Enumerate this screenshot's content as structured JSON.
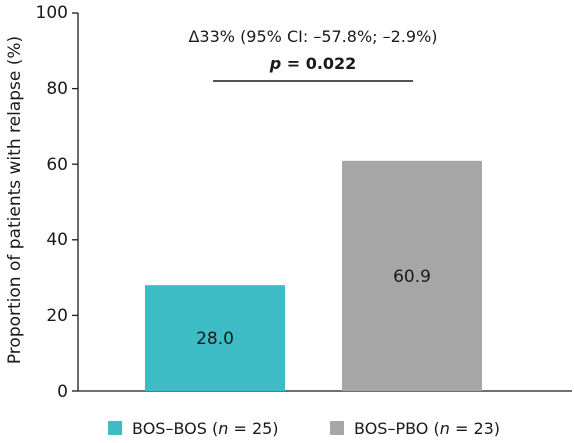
{
  "chart_data": {
    "type": "bar",
    "categories": [
      "BOS–BOS",
      "BOS–PBO"
    ],
    "values": [
      28.0,
      60.9
    ],
    "data_labels": [
      "28.0",
      "60.9"
    ],
    "colors": [
      "#3dbcc6",
      "#a6a6a6"
    ],
    "ylabel": "Proportion of patients with relapse (%)",
    "ylim": [
      0,
      100
    ],
    "yticks": [
      "0",
      "20",
      "40",
      "60",
      "80",
      "100"
    ],
    "grid": false,
    "legend_position": "bottom",
    "legend": [
      {
        "prefix": "BOS–BOS (",
        "n_label": "n",
        "suffix": " = 25)",
        "color": "#3dbcc6"
      },
      {
        "prefix": "BOS–PBO (",
        "n_label": "n",
        "suffix": " = 23)",
        "color": "#a6a6a6"
      }
    ],
    "annotation": {
      "line1": "Δ33% (95% CI: –57.8%; –2.9%)",
      "p_label": "p",
      "p_value": " = 0.022"
    }
  }
}
